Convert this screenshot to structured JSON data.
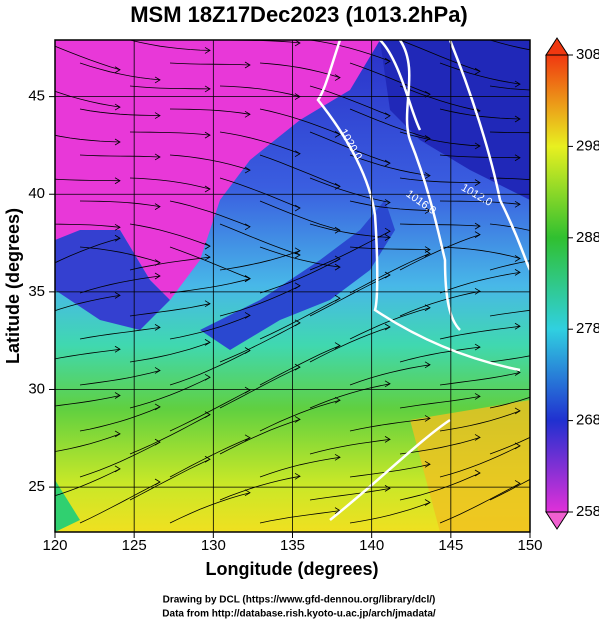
{
  "chart_data": {
    "type": "map",
    "title": "MSM 18Z17Dec2023 (1013.2hPa)",
    "x_label": "Longitude (degrees)",
    "y_label": "Latitude  (degrees)",
    "xlim": [
      120,
      150
    ],
    "xticks": [
      120,
      125,
      130,
      135,
      140,
      145,
      150
    ],
    "ylim": [
      22.7,
      47.9
    ],
    "yticks": [
      25,
      30,
      35,
      40,
      45
    ],
    "grid": true,
    "colorbar": {
      "lim": [
        258,
        308
      ],
      "ticks": [
        258,
        268,
        278,
        288,
        298,
        308
      ]
    },
    "contour_labels": [
      "1020.0",
      "1016.0",
      "1012.0"
    ],
    "footer": [
      "Drawing by DCL (https://www.gfd-dennou.org/library/dcl/)",
      "Data from http://database.rish.kyoto-u.ac.jp/arch/jmadata/"
    ]
  }
}
